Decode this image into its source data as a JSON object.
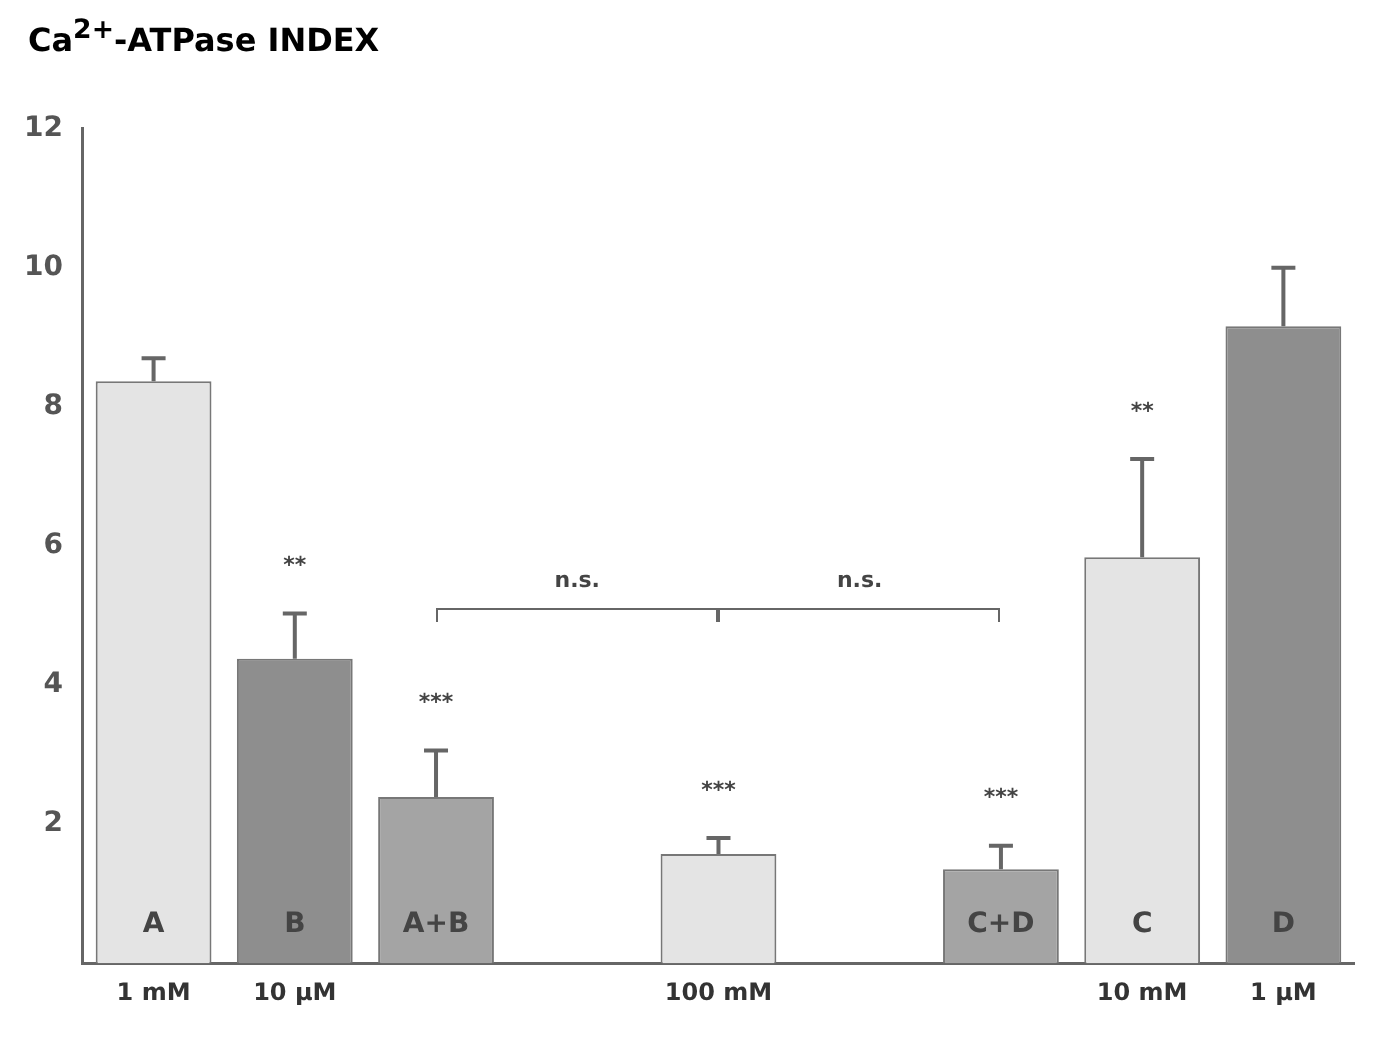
{
  "chart_data": {
    "type": "bar",
    "title": "Ca$^{2+}$-ATPase INDEX",
    "categories": [
      "1 mM",
      "10 μM",
      null,
      null,
      "100 mM",
      null,
      null,
      "10 mM",
      "1 μM"
    ],
    "values": [
      8.37,
      4.38,
      2.39,
      null,
      1.57,
      null,
      1.35,
      5.84,
      9.16
    ],
    "colors": [
      "#e4e4e4",
      "#8e8e8e",
      "#a4a4a4",
      null,
      "#e4e4e4",
      null,
      "#a4a4a4",
      "#e4e4e4",
      "#8e8e8e"
    ],
    "errors": [
      [
        8.37,
        8.7
      ],
      [
        4.38,
        5.03
      ],
      [
        2.39,
        3.06
      ],
      null,
      [
        1.57,
        1.8
      ],
      null,
      [
        1.35,
        1.69
      ],
      [
        5.84,
        7.25
      ],
      [
        9.16,
        10.0
      ]
    ],
    "value_labels": [
      "A",
      "B",
      "A+B",
      null,
      null,
      null,
      "C+D",
      "C",
      "D"
    ],
    "annotations": [
      "**",
      "***",
      "***",
      "***",
      "**",
      "n.s.",
      "n.s."
    ],
    "ylim": [
      0,
      12
    ],
    "yticks": [
      2,
      4,
      6,
      8,
      10,
      12
    ],
    "grid": false,
    "legend": false
  }
}
